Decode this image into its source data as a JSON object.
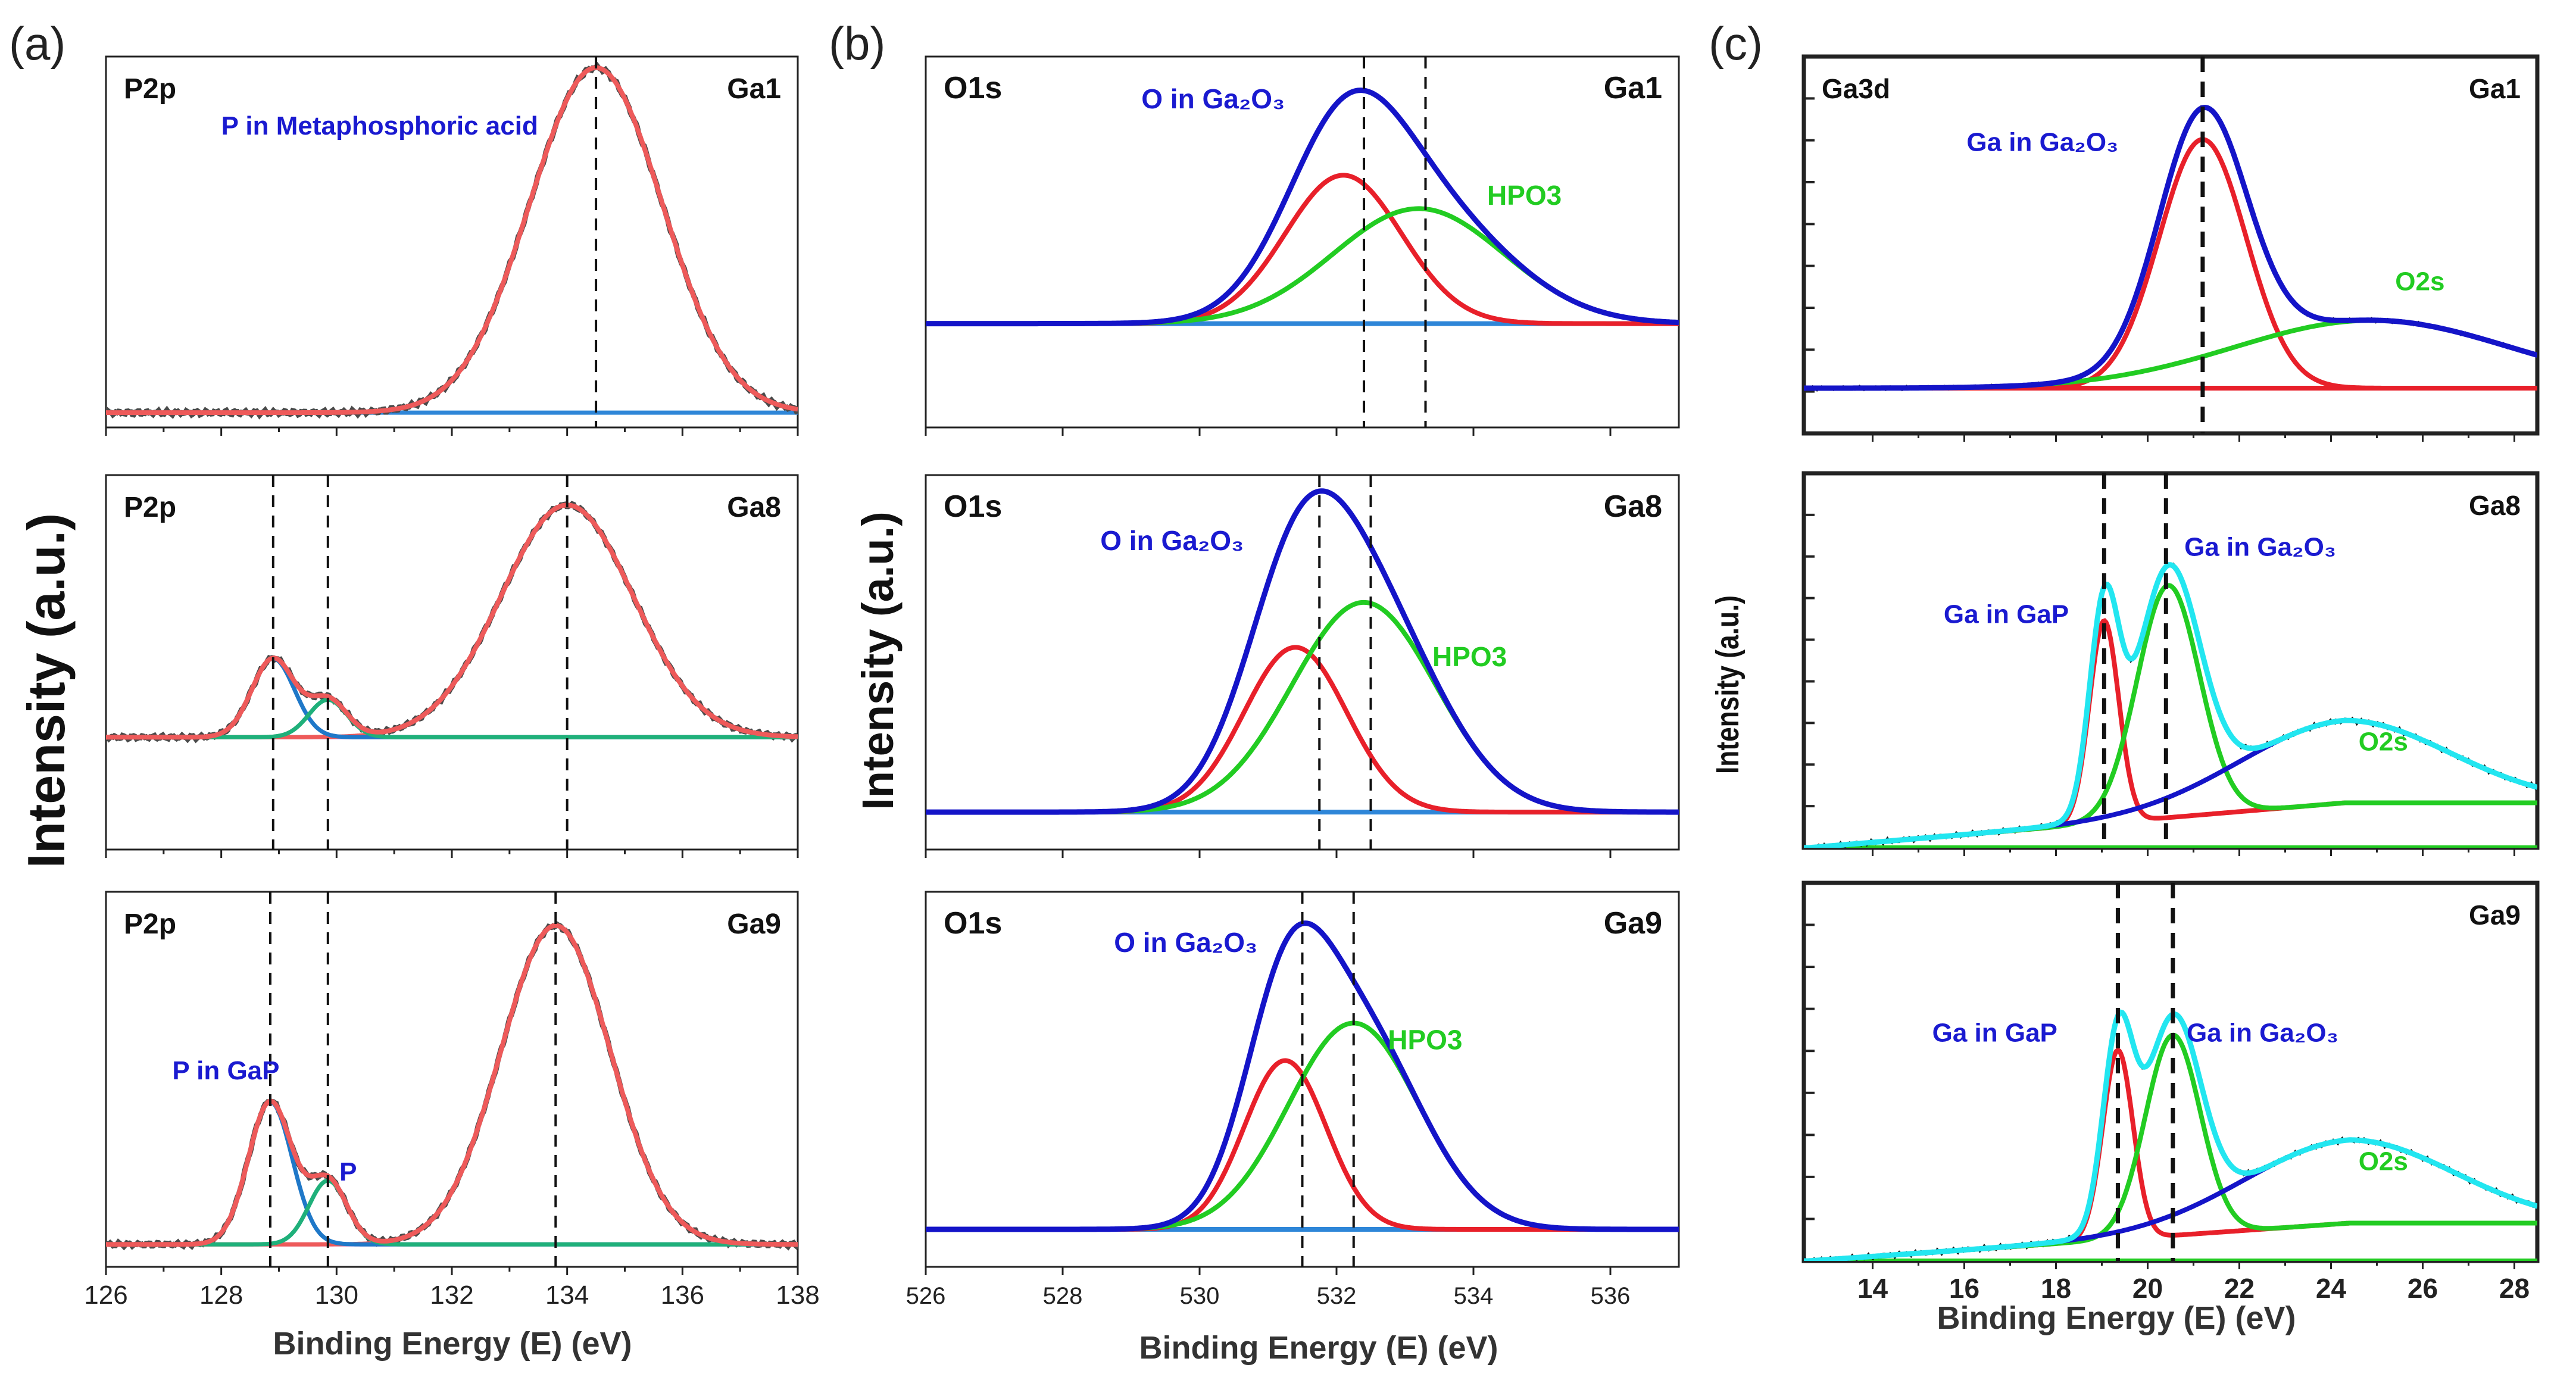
{
  "figure": {
    "panel_labels": [
      "(a)",
      "(b)",
      "(c)"
    ],
    "ylabels": [
      "Intensity (a.u.)",
      "Intensity (a.u.)",
      "Intensity (a.u.)"
    ],
    "xlabels": [
      "Binding Energy (E) (eV)",
      "Binding Energy (E) (eV)",
      "Binding Energy (E) (eV)"
    ]
  },
  "colors": {
    "raw": "#4a4a4a",
    "raw_c": "#111111",
    "baseline_blue": "#2e86d8",
    "baseline_violet": "#c98be0",
    "red": "#e8202a",
    "red_a": "#ee5a5a",
    "green": "#22cc22",
    "green_a": "#1fb07a",
    "blue": "#1414c8",
    "lightblue": "#1f78c8",
    "cyan": "#22e6f0",
    "labelblue": "#1a1ad0"
  },
  "chart_data": [
    {
      "panel": "a",
      "type": "line",
      "xlim": [
        126,
        138
      ],
      "xticks": [
        "126",
        "128",
        "130",
        "132",
        "134",
        "136",
        "138"
      ],
      "xlabel": "Binding Energy (E) (eV)",
      "ylabel": "Intensity (a.u.)",
      "subplots": [
        {
          "core_level": "P2p",
          "sample": "Ga1",
          "annotations": [
            {
              "text": "P in Metaphosphoric acid",
              "x": 128.0,
              "y": 0.79
            }
          ],
          "dashed_lines": [
            134.5
          ],
          "baseline": {
            "value": 0.04,
            "color": "baseline_blue"
          },
          "peaks": [
            {
              "center": 134.5,
              "amplitude": 0.93,
              "sigma": 1.15,
              "color": "red_a",
              "label": "Metaphosphoric acid"
            }
          ],
          "envelope": "red_a",
          "noise": 0.007
        },
        {
          "core_level": "P2p",
          "sample": "Ga8",
          "annotations": [],
          "dashed_lines": [
            128.9,
            129.85,
            134.0
          ],
          "baseline": {
            "value": 0.3,
            "color": "baseline_violet"
          },
          "peaks": [
            {
              "center": 134.0,
              "amplitude": 0.62,
              "sigma": 1.15,
              "color": "red_a",
              "label": "Metaphosphoric acid"
            },
            {
              "center": 128.9,
              "amplitude": 0.21,
              "sigma": 0.37,
              "color": "lightblue",
              "label": "P in GaP"
            },
            {
              "center": 129.85,
              "amplitude": 0.1,
              "sigma": 0.33,
              "color": "green_a",
              "label": "P"
            }
          ],
          "envelope": "red_a",
          "noise": 0.006
        },
        {
          "core_level": "P2p",
          "sample": "Ga9",
          "annotations": [
            {
              "text": "P in GaP",
              "x": 127.15,
              "y": 0.5
            },
            {
              "text": "P",
              "x": 130.05,
              "y": 0.23
            }
          ],
          "dashed_lines": [
            128.85,
            129.85,
            133.8
          ],
          "baseline": {
            "value": 0.06,
            "color": "baseline_violet"
          },
          "peaks": [
            {
              "center": 133.8,
              "amplitude": 0.85,
              "sigma": 0.95,
              "color": "red_a",
              "label": "Metaphosphoric acid"
            },
            {
              "center": 128.85,
              "amplitude": 0.38,
              "sigma": 0.38,
              "color": "lightblue",
              "label": "P in GaP"
            },
            {
              "center": 129.85,
              "amplitude": 0.17,
              "sigma": 0.33,
              "color": "green_a",
              "label": "P"
            }
          ],
          "envelope": "red_a",
          "noise": 0.006
        }
      ]
    },
    {
      "panel": "b",
      "type": "line",
      "xlim": [
        526,
        537
      ],
      "xticks": [
        "526",
        "528",
        "530",
        "532",
        "534",
        "536"
      ],
      "xlabel": "Binding Energy (E) (eV)",
      "ylabel": "Intensity (a.u.)",
      "subplots": [
        {
          "core_level": "O1s",
          "sample": "Ga1",
          "annotations": [
            {
              "text": "O in Ga₂O₃",
              "x": 529.15,
              "y": 0.86
            },
            {
              "text": "HPO3",
              "x": 534.2,
              "y": 0.6
            }
          ],
          "dashed_lines": [
            532.4,
            533.3
          ],
          "baseline": {
            "value": 0.28,
            "color": "baseline_blue"
          },
          "peaks": [
            {
              "center": 532.1,
              "amplitude": 0.4,
              "sigma": 0.85,
              "color": "red",
              "label": "O in Ga2O3"
            },
            {
              "center": 533.2,
              "amplitude": 0.31,
              "sigma": 1.25,
              "color": "green",
              "label": "HPO3"
            }
          ],
          "envelope": "blue",
          "noise": 0
        },
        {
          "core_level": "O1s",
          "sample": "Ga8",
          "annotations": [
            {
              "text": "O in Ga₂O₃",
              "x": 528.55,
              "y": 0.8
            },
            {
              "text": "HPO3",
              "x": 533.4,
              "y": 0.49
            }
          ],
          "dashed_lines": [
            531.75,
            532.5
          ],
          "baseline": {
            "value": 0.1,
            "color": "baseline_blue"
          },
          "peaks": [
            {
              "center": 531.4,
              "amplitude": 0.44,
              "sigma": 0.75,
              "color": "red",
              "label": "O in Ga2O3"
            },
            {
              "center": 532.4,
              "amplitude": 0.56,
              "sigma": 1.05,
              "color": "green",
              "label": "HPO3"
            }
          ],
          "envelope": "blue",
          "noise": 0
        },
        {
          "core_level": "O1s",
          "sample": "Ga9",
          "annotations": [
            {
              "text": "O in Ga₂O₃",
              "x": 528.75,
              "y": 0.84
            },
            {
              "text": "HPO3",
              "x": 532.75,
              "y": 0.58
            }
          ],
          "dashed_lines": [
            531.5,
            532.25
          ],
          "baseline": {
            "value": 0.1,
            "color": "baseline_blue"
          },
          "peaks": [
            {
              "center": 531.25,
              "amplitude": 0.45,
              "sigma": 0.6,
              "color": "red",
              "label": "O in Ga2O3"
            },
            {
              "center": 532.25,
              "amplitude": 0.55,
              "sigma": 0.95,
              "color": "green",
              "label": "HPO3"
            }
          ],
          "envelope": "blue",
          "noise": 0
        }
      ]
    },
    {
      "panel": "c",
      "type": "line",
      "xlim": [
        12.5,
        28.5
      ],
      "xticks": [
        "14",
        "16",
        "18",
        "20",
        "22",
        "24",
        "26",
        "28"
      ],
      "xlabel": "Binding Energy (E) (eV)",
      "ylabel": "Intensity (a.u.)",
      "subplots": [
        {
          "core_level": "Ga3d",
          "sample": "Ga1",
          "annotations": [
            {
              "text": "Ga in Ga₂O₃",
              "x": 16.05,
              "y": 0.75
            },
            {
              "text": "O2s",
              "x": 25.4,
              "y": 0.38
            }
          ],
          "dashed_lines": [
            21.2
          ],
          "baseline": {
            "value": 0.12,
            "color": "red"
          },
          "peaks": [
            {
              "center": 21.2,
              "amplitude": 0.66,
              "sigma": 0.95,
              "color": "red",
              "label": "Ga in Ga2O3"
            },
            {
              "center": 24.9,
              "amplitude": 0.18,
              "sigma": 3.0,
              "color": "green",
              "label": "O2s"
            }
          ],
          "envelope": "blue",
          "noise": 0.004
        },
        {
          "core_level": "",
          "sample": "Ga8",
          "annotations": [
            {
              "text": "Ga in GaP",
              "x": 15.55,
              "y": 0.6
            },
            {
              "text": "Ga in Ga₂O₃",
              "x": 20.8,
              "y": 0.78
            },
            {
              "text": "O2s",
              "x": 24.6,
              "y": 0.26
            }
          ],
          "dashed_lines": [
            19.05,
            20.4
          ],
          "baseline": {
            "value": 0.0,
            "color": "green"
          },
          "background": {
            "from": [
              12.6,
              0.0
            ],
            "to": [
              24.3,
              0.12
            ]
          },
          "peaks": [
            {
              "center": 19.05,
              "amplitude": 0.54,
              "sigma": 0.32,
              "color": "red",
              "label": "Ga in GaP"
            },
            {
              "center": 20.45,
              "amplitude": 0.62,
              "sigma": 0.68,
              "color": "green",
              "label": "Ga in Ga2O3"
            },
            {
              "center": 24.3,
              "amplitude": 0.22,
              "sigma": 2.3,
              "color": "blue",
              "label": "O2s"
            }
          ],
          "envelope": "cyan",
          "noise": 0.006
        },
        {
          "core_level": "",
          "sample": "Ga9",
          "annotations": [
            {
              "text": "Ga in GaP",
              "x": 15.3,
              "y": 0.58
            },
            {
              "text": "Ga in Ga₂O₃",
              "x": 20.85,
              "y": 0.58
            },
            {
              "text": "O2s",
              "x": 24.6,
              "y": 0.24
            }
          ],
          "dashed_lines": [
            19.35,
            20.55
          ],
          "baseline": {
            "value": 0.0,
            "color": "green"
          },
          "background": {
            "from": [
              12.6,
              0.0
            ],
            "to": [
              24.4,
              0.1
            ]
          },
          "peaks": [
            {
              "center": 19.35,
              "amplitude": 0.5,
              "sigma": 0.33,
              "color": "red",
              "label": "Ga in GaP"
            },
            {
              "center": 20.55,
              "amplitude": 0.53,
              "sigma": 0.6,
              "color": "green",
              "label": "Ga in Ga2O3"
            },
            {
              "center": 24.4,
              "amplitude": 0.22,
              "sigma": 2.3,
              "color": "blue",
              "label": "O2s"
            }
          ],
          "envelope": "cyan",
          "noise": 0.006
        }
      ]
    }
  ]
}
